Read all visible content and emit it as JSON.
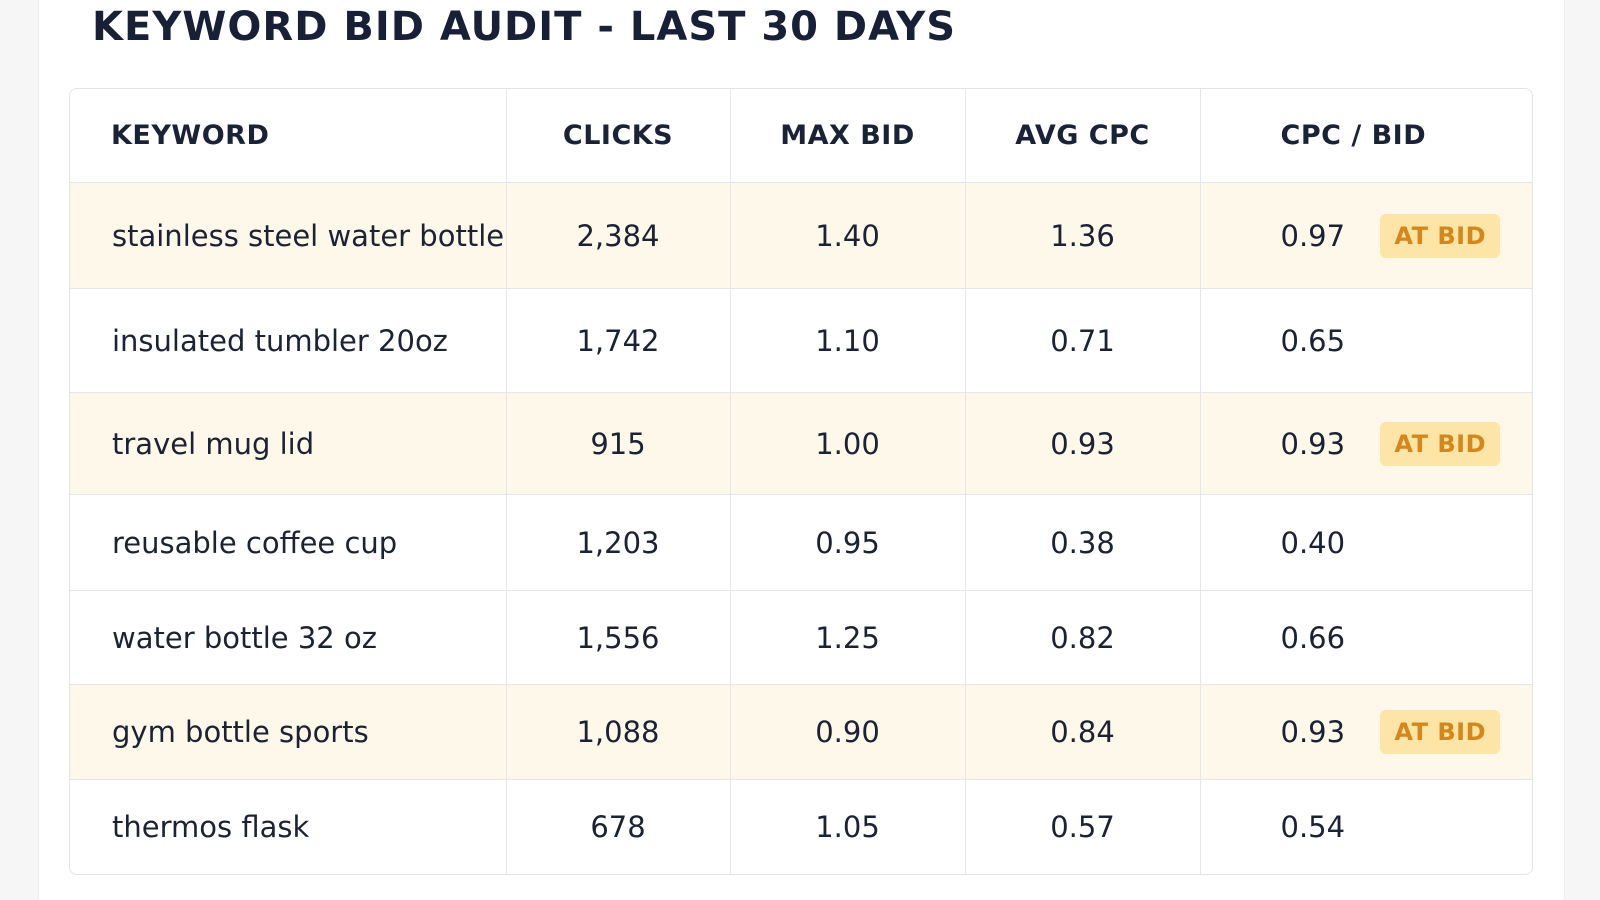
{
  "page": {
    "title": "KEYWORD BID AUDIT - LAST 30 DAYS"
  },
  "table": {
    "columns": [
      "KEYWORD",
      "CLICKS",
      "MAX BID",
      "AVG CPC",
      "CPC / BID"
    ],
    "rows": [
      {
        "keyword": "stainless steel water bottle",
        "clicks": "2,384",
        "max_bid": "1.40",
        "avg_cpc": "1.36",
        "cpc_bid": "0.97",
        "badge": "AT BID",
        "highlighted": true
      },
      {
        "keyword": "insulated tumbler 20oz",
        "clicks": "1,742",
        "max_bid": "1.10",
        "avg_cpc": "0.71",
        "cpc_bid": "0.65",
        "badge": "",
        "highlighted": false
      },
      {
        "keyword": "travel mug lid",
        "clicks": "915",
        "max_bid": "1.00",
        "avg_cpc": "0.93",
        "cpc_bid": "0.93",
        "badge": "AT BID",
        "highlighted": true
      },
      {
        "keyword": "reusable coffee cup",
        "clicks": "1,203",
        "max_bid": "0.95",
        "avg_cpc": "0.38",
        "cpc_bid": "0.40",
        "badge": "",
        "highlighted": false
      },
      {
        "keyword": "water bottle 32 oz",
        "clicks": "1,556",
        "max_bid": "1.25",
        "avg_cpc": "0.82",
        "cpc_bid": "0.66",
        "badge": "",
        "highlighted": false
      },
      {
        "keyword": "gym bottle sports",
        "clicks": "1,088",
        "max_bid": "0.90",
        "avg_cpc": "0.84",
        "cpc_bid": "0.93",
        "badge": "AT BID",
        "highlighted": true
      },
      {
        "keyword": "thermos flask",
        "clicks": "678",
        "max_bid": "1.05",
        "avg_cpc": "0.57",
        "cpc_bid": "0.54",
        "badge": "",
        "highlighted": false
      }
    ]
  },
  "colors": {
    "highlight_row": "#fef8ea",
    "badge_bg": "#fde5a8",
    "badge_text": "#d7861a",
    "heading_text": "#182038"
  }
}
